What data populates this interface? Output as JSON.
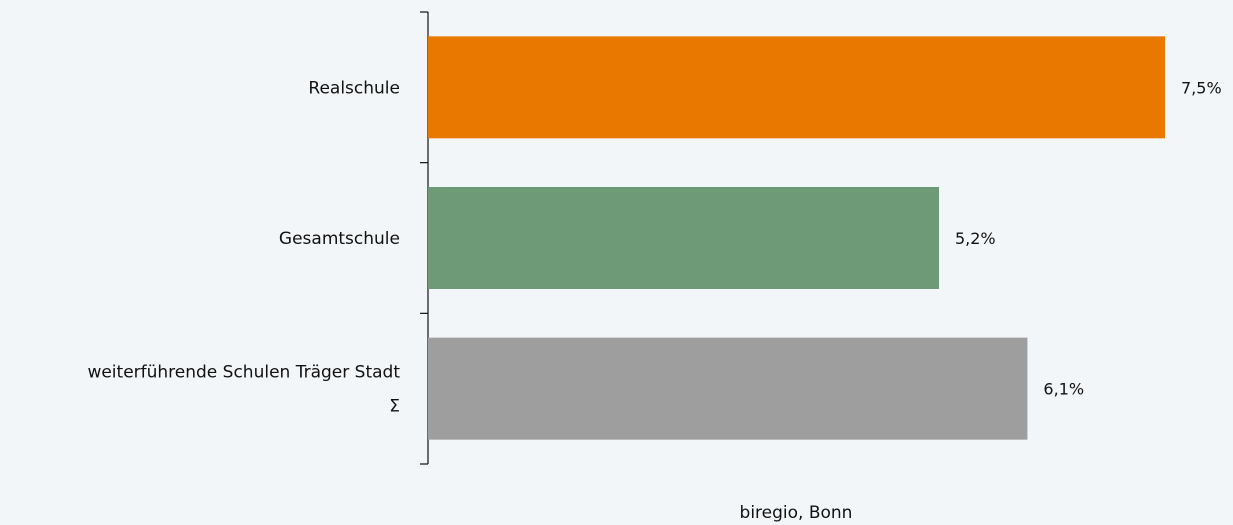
{
  "chart_data": {
    "type": "bar",
    "orientation": "horizontal",
    "categories": [
      [
        "Realschule"
      ],
      [
        "Gesamtschule"
      ],
      [
        "weiterführende Schulen Träger Stadt",
        "Σ"
      ]
    ],
    "values": [
      7.5,
      5.2,
      6.1
    ],
    "value_labels": [
      "7,5%",
      "5,2%",
      "6,1%"
    ],
    "colors": [
      "#e87800",
      "#6e9a77",
      "#9e9e9e"
    ],
    "xlim": [
      0,
      7.5
    ],
    "grid": false,
    "legend": "none",
    "source": "biregio, Bonn"
  }
}
